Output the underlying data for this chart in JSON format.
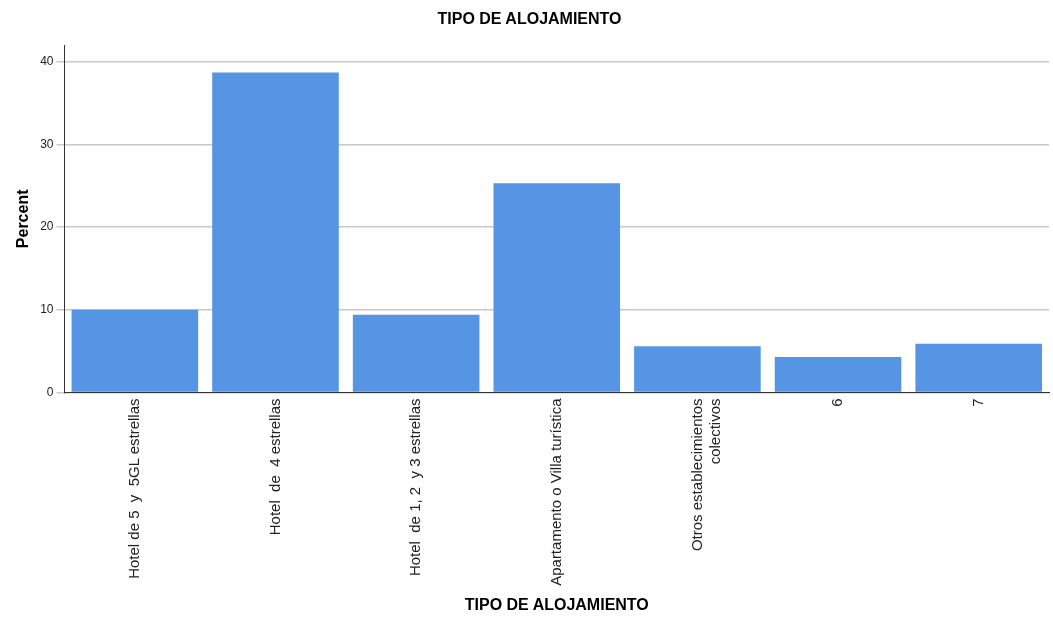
{
  "chart_data": {
    "type": "bar",
    "title": "TIPO DE ALOJAMIENTO",
    "xlabel": "TIPO DE ALOJAMIENTO",
    "ylabel": "Percent",
    "categories": [
      "Hotel de 5  y  5GL estrellas",
      "Hotel  de  4 estrellas",
      "Hotel  de 1, 2  y 3 estrellas",
      "Apartamento o Villa turística",
      "Otros establecimientos\ncolectivos",
      "6",
      "7"
    ],
    "values": [
      10.0,
      38.7,
      9.4,
      25.3,
      5.6,
      4.3,
      5.9
    ],
    "color": "#5595e3",
    "ylim": [
      0,
      42
    ],
    "yticks": [
      0,
      10,
      20,
      30,
      40
    ],
    "grid": "y",
    "legend": false
  }
}
